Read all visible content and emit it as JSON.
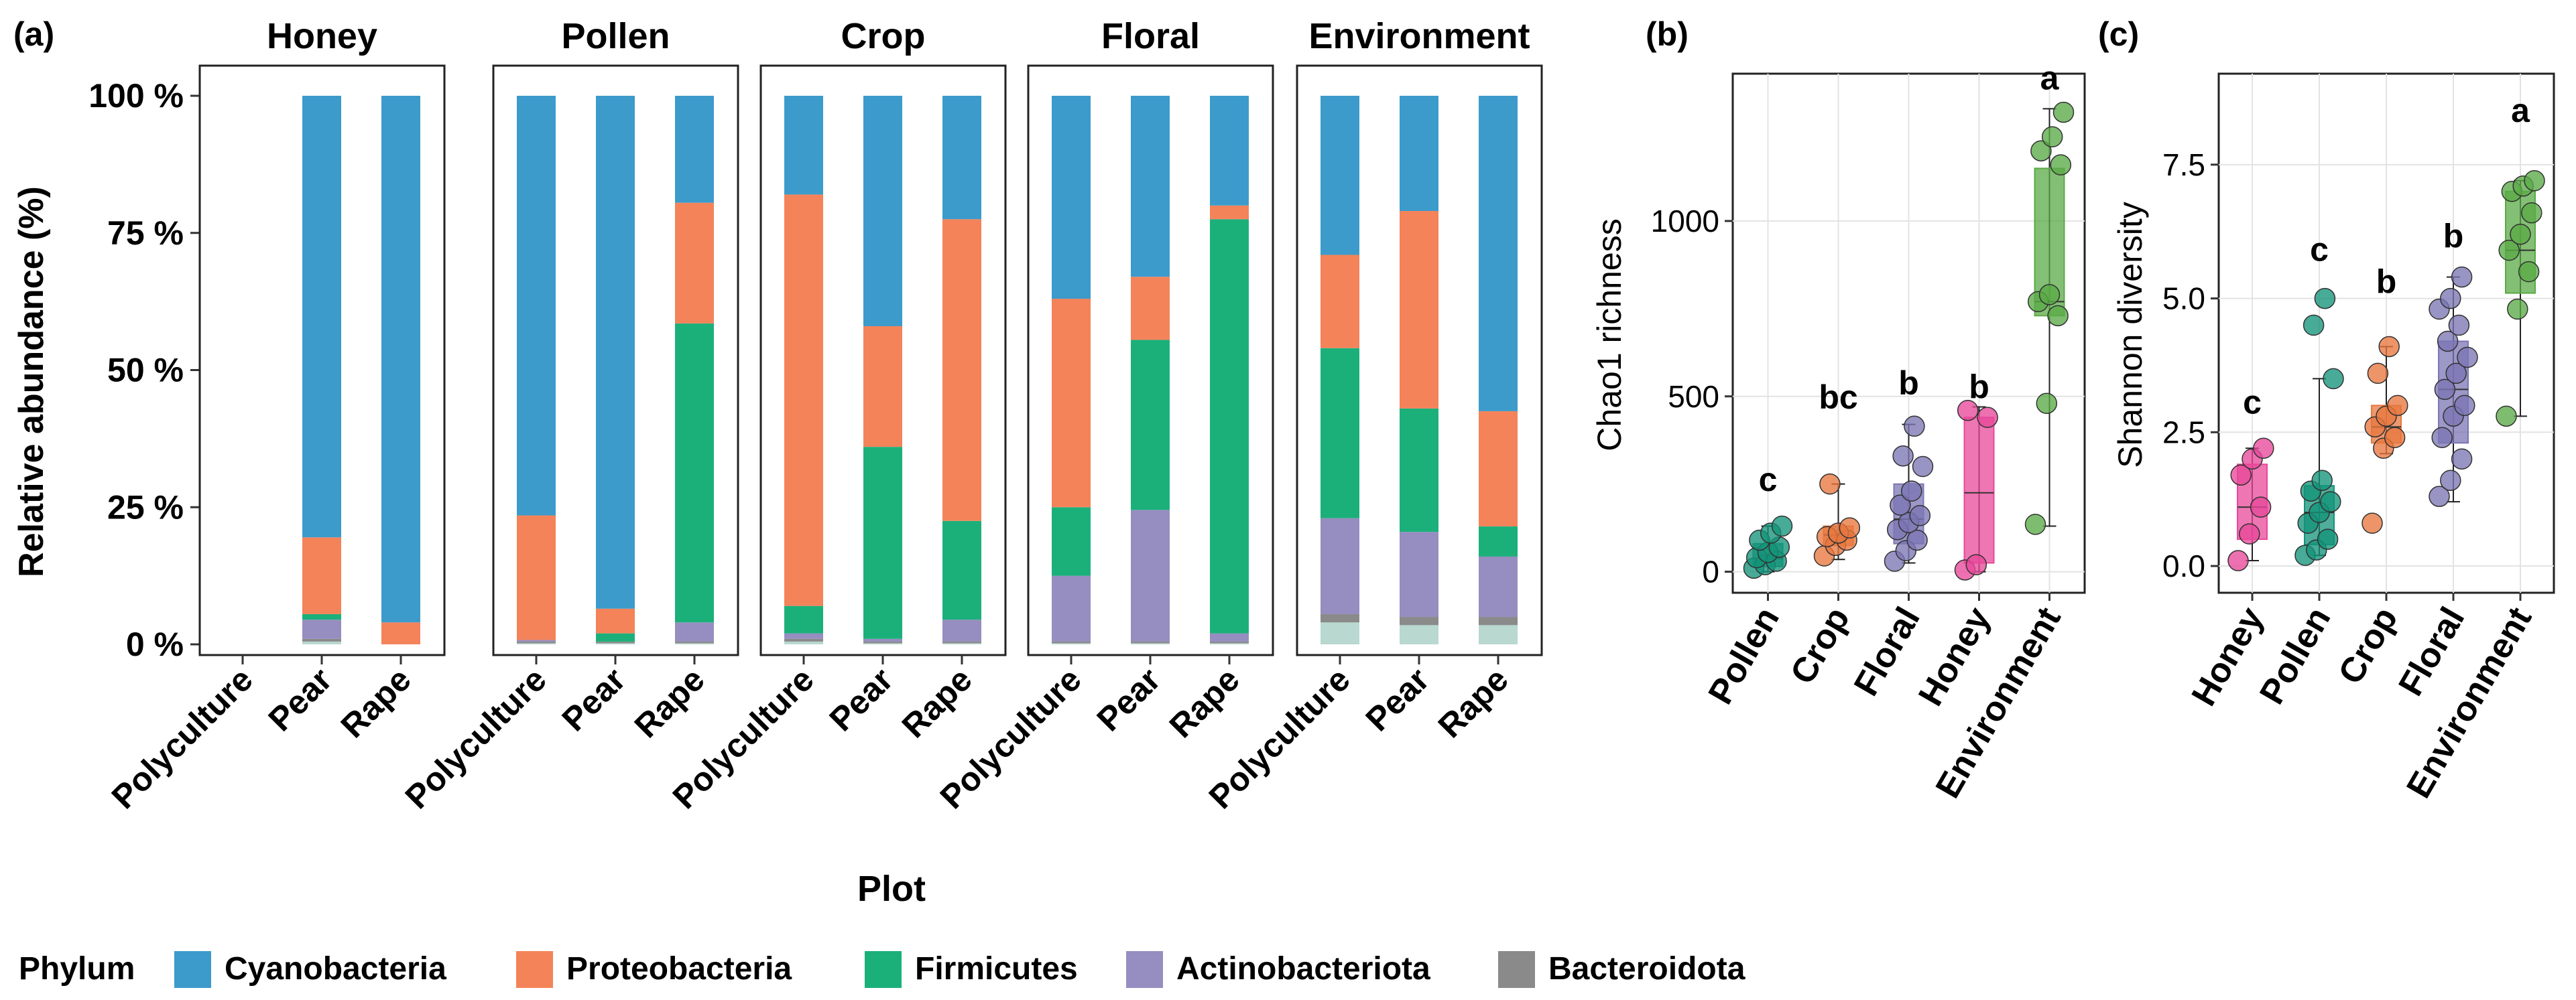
{
  "colors": {
    "cyanobacteria": "#3c9bcb",
    "proteobacteria": "#f4835a",
    "firmicutes": "#1bb07a",
    "actinobacteriota": "#968dc0",
    "bacteroidota": "#8a8a8a",
    "minor": "#b8d8d0",
    "pollen": "#13937a",
    "crop": "#e8773f",
    "floral": "#7b76b4",
    "honey": "#e8489a",
    "environment": "#5aaa46"
  },
  "chart_data": [
    {
      "id": "a",
      "panel_label": "(a)",
      "type": "bar",
      "stacked": true,
      "xlabel": "Plot",
      "ylabel": "Relative abundance (%)",
      "ylim": [
        0,
        100
      ],
      "yticks": [
        0,
        25,
        50,
        75,
        100
      ],
      "ytick_labels": [
        "0 %",
        "25 %",
        "50 %",
        "75 %",
        "100 %"
      ],
      "categories": [
        "Polyculture",
        "Pear",
        "Rape"
      ],
      "legend_title": "Phylum",
      "legend": [
        "Cyanobacteria",
        "Proteobacteria",
        "Firmicutes",
        "Actinobacteriota",
        "Bacteroidota"
      ],
      "series_order": [
        "other",
        "Bacteroidota",
        "Actinobacteriota",
        "Firmicutes",
        "Proteobacteria",
        "Cyanobacteria"
      ],
      "facets": [
        {
          "name": "Honey",
          "bars": [
            null,
            {
              "other": 0.5,
              "Bacteroidota": 0.5,
              "Actinobacteriota": 3.5,
              "Firmicutes": 1,
              "Proteobacteria": 14,
              "Cyanobacteria": 80.5
            },
            {
              "other": 0,
              "Bacteroidota": 0,
              "Actinobacteriota": 0,
              "Firmicutes": 0,
              "Proteobacteria": 4,
              "Cyanobacteria": 96
            }
          ]
        },
        {
          "name": "Pollen",
          "bars": [
            {
              "other": 0.2,
              "Bacteroidota": 0.3,
              "Actinobacteriota": 0.3,
              "Firmicutes": 0,
              "Proteobacteria": 22.7,
              "Cyanobacteria": 76.5
            },
            {
              "other": 0.2,
              "Bacteroidota": 0.3,
              "Actinobacteriota": 0,
              "Firmicutes": 1.5,
              "Proteobacteria": 4.5,
              "Cyanobacteria": 93.5
            },
            {
              "other": 0.2,
              "Bacteroidota": 0.3,
              "Actinobacteriota": 3.5,
              "Firmicutes": 54.5,
              "Proteobacteria": 22,
              "Cyanobacteria": 19.5
            }
          ]
        },
        {
          "name": "Crop",
          "bars": [
            {
              "other": 0.5,
              "Bacteroidota": 0.5,
              "Actinobacteriota": 1,
              "Firmicutes": 5,
              "Proteobacteria": 75,
              "Cyanobacteria": 18
            },
            {
              "other": 0.2,
              "Bacteroidota": 0.3,
              "Actinobacteriota": 0.5,
              "Firmicutes": 35,
              "Proteobacteria": 22,
              "Cyanobacteria": 42
            },
            {
              "other": 0.2,
              "Bacteroidota": 0.3,
              "Actinobacteriota": 4,
              "Firmicutes": 18,
              "Proteobacteria": 55,
              "Cyanobacteria": 22.5
            }
          ]
        },
        {
          "name": "Floral",
          "bars": [
            {
              "other": 0.2,
              "Bacteroidota": 0.3,
              "Actinobacteriota": 12,
              "Firmicutes": 12.5,
              "Proteobacteria": 38,
              "Cyanobacteria": 37
            },
            {
              "other": 0.2,
              "Bacteroidota": 0.3,
              "Actinobacteriota": 24,
              "Firmicutes": 31,
              "Proteobacteria": 11.5,
              "Cyanobacteria": 33
            },
            {
              "other": 0.2,
              "Bacteroidota": 0.3,
              "Actinobacteriota": 1.5,
              "Firmicutes": 75.5,
              "Proteobacteria": 2.5,
              "Cyanobacteria": 20
            }
          ]
        },
        {
          "name": "Environment",
          "bars": [
            {
              "other": 4,
              "Bacteroidota": 1.5,
              "Actinobacteriota": 17.5,
              "Firmicutes": 31,
              "Proteobacteria": 17,
              "Cyanobacteria": 29
            },
            {
              "other": 3.5,
              "Bacteroidota": 1.5,
              "Actinobacteriota": 15.5,
              "Firmicutes": 22.5,
              "Proteobacteria": 36,
              "Cyanobacteria": 21
            },
            {
              "other": 3.5,
              "Bacteroidota": 1.5,
              "Actinobacteriota": 11,
              "Firmicutes": 5.5,
              "Proteobacteria": 21,
              "Cyanobacteria": 57.5
            }
          ]
        }
      ]
    },
    {
      "id": "b",
      "panel_label": "(b)",
      "type": "box",
      "ylabel": "Chao1 richness",
      "ylim": [
        -60,
        1420
      ],
      "yticks": [
        0,
        500,
        1000
      ],
      "ytick_labels": [
        "0",
        "500",
        "1000"
      ],
      "categories": [
        "Pollen",
        "Crop",
        "Floral",
        "Honey",
        "Environment"
      ],
      "color_keys": [
        "pollen",
        "crop",
        "floral",
        "honey",
        "environment"
      ],
      "letters": [
        "c",
        "bc",
        "b",
        "b",
        "a"
      ],
      "letter_y": [
        230,
        465,
        505,
        495,
        1375
      ],
      "boxes": [
        {
          "min": 0,
          "q1": 15,
          "median": 38,
          "q3": 80,
          "max": 130
        },
        {
          "min": 35,
          "q1": 75,
          "median": 105,
          "q3": 130,
          "max": 250
        },
        {
          "min": 25,
          "q1": 80,
          "median": 150,
          "q3": 250,
          "max": 420
        },
        {
          "min": 0,
          "q1": 25,
          "median": 225,
          "q3": 440,
          "max": 470
        },
        {
          "min": 130,
          "q1": 730,
          "median": 770,
          "q3": 1150,
          "max": 1320
        }
      ],
      "points": [
        [
          10,
          20,
          30,
          40,
          55,
          70,
          90,
          110,
          130
        ],
        [
          45,
          75,
          90,
          100,
          110,
          125,
          250
        ],
        [
          30,
          60,
          90,
          120,
          140,
          160,
          190,
          230,
          300,
          330,
          415
        ],
        [
          5,
          20,
          440,
          460
        ],
        [
          135,
          480,
          730,
          770,
          790,
          1160,
          1200,
          1240,
          1310
        ]
      ]
    },
    {
      "id": "c",
      "panel_label": "(c)",
      "type": "box",
      "ylabel": "Shannon diversity",
      "ylim": [
        -0.5,
        9.2
      ],
      "yticks": [
        0,
        2.5,
        5,
        7.5
      ],
      "ytick_labels": [
        "0.0",
        "2.5",
        "5.0",
        "7.5"
      ],
      "categories": [
        "Honey",
        "Pollen",
        "Crop",
        "Floral",
        "Environment"
      ],
      "color_keys": [
        "honey",
        "pollen",
        "crop",
        "floral",
        "environment"
      ],
      "letters": [
        "c",
        "c",
        "b",
        "b",
        "a"
      ],
      "letter_y": [
        2.85,
        5.7,
        5.1,
        5.95,
        8.3
      ],
      "boxes": [
        {
          "min": 0.1,
          "q1": 0.5,
          "median": 1.1,
          "q3": 1.9,
          "max": 2.2
        },
        {
          "min": 0.2,
          "q1": 0.4,
          "median": 1.0,
          "q3": 1.5,
          "max": 3.5
        },
        {
          "min": 2.1,
          "q1": 2.3,
          "median": 2.6,
          "q3": 3.0,
          "max": 4.1
        },
        {
          "min": 1.2,
          "q1": 2.3,
          "median": 3.3,
          "q3": 4.2,
          "max": 5.4
        },
        {
          "min": 2.8,
          "q1": 5.1,
          "median": 5.9,
          "q3": 7.0,
          "max": 7.2
        }
      ],
      "points": [
        [
          0.1,
          0.6,
          1.1,
          1.7,
          2.0,
          2.2
        ],
        [
          0.2,
          0.3,
          0.5,
          0.8,
          1.0,
          1.2,
          1.4,
          1.6,
          3.5,
          4.5,
          5.0
        ],
        [
          0.8,
          2.2,
          2.4,
          2.6,
          2.8,
          3.0,
          3.6,
          4.1
        ],
        [
          1.3,
          1.6,
          2.0,
          2.4,
          2.8,
          3.0,
          3.3,
          3.6,
          3.9,
          4.2,
          4.5,
          4.8,
          5.0,
          5.4
        ],
        [
          2.8,
          4.8,
          5.5,
          5.9,
          6.2,
          6.6,
          7.0,
          7.1,
          7.2
        ]
      ]
    }
  ]
}
